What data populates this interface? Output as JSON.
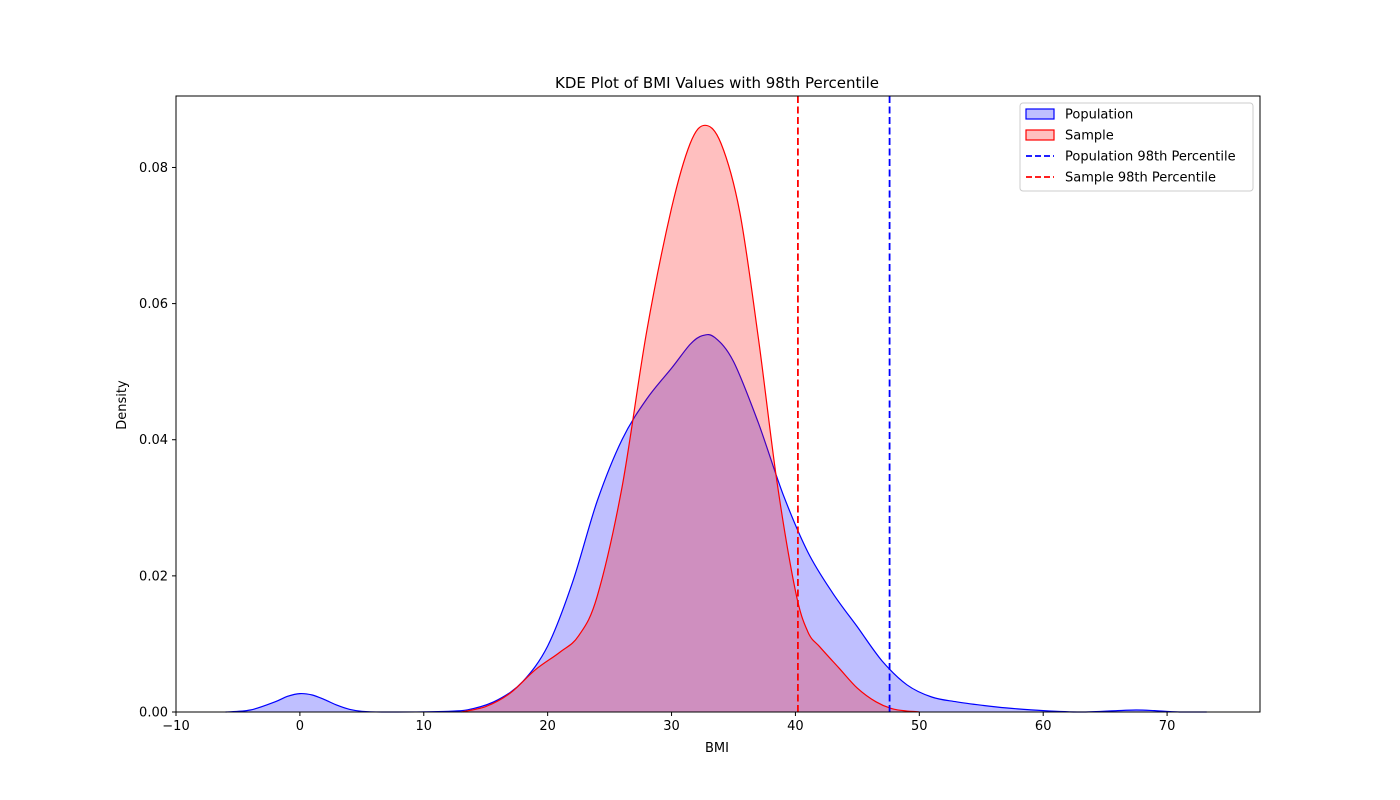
{
  "chart_data": {
    "type": "area",
    "title": "KDE Plot of BMI Values with 98th Percentile",
    "xlabel": "BMI",
    "ylabel": "Density",
    "xlim": [
      -10,
      77.5
    ],
    "ylim": [
      0,
      0.0905
    ],
    "xticks": [
      -10,
      0,
      10,
      20,
      30,
      40,
      50,
      60,
      70
    ],
    "xtick_labels": [
      "−10",
      "0",
      "10",
      "20",
      "30",
      "40",
      "50",
      "60",
      "70"
    ],
    "yticks": [
      0,
      0.02,
      0.04,
      0.06,
      0.08
    ],
    "ytick_labels": [
      "0.00",
      "0.02",
      "0.04",
      "0.06",
      "0.08"
    ],
    "grid": false,
    "legend_position": "top-right",
    "series": [
      {
        "name": "Population",
        "kind": "kde-fill",
        "line_color": "#0000ff",
        "fill_color": "#0000ff",
        "fill_opacity": 0.25,
        "points": [
          [
            -6.0,
            0.0
          ],
          [
            -4.0,
            0.0003
          ],
          [
            -2.0,
            0.0015
          ],
          [
            -1.0,
            0.0023
          ],
          [
            0.0,
            0.0027
          ],
          [
            1.0,
            0.0025
          ],
          [
            2.0,
            0.0018
          ],
          [
            3.0,
            0.001
          ],
          [
            4.0,
            0.0004
          ],
          [
            5.0,
            0.0001
          ],
          [
            7.0,
            0.0
          ],
          [
            12.0,
            0.0001
          ],
          [
            14.0,
            0.0005
          ],
          [
            16.0,
            0.0018
          ],
          [
            18.0,
            0.0045
          ],
          [
            20.0,
            0.0097
          ],
          [
            22.0,
            0.019
          ],
          [
            24.0,
            0.031
          ],
          [
            26.0,
            0.04
          ],
          [
            28.0,
            0.046
          ],
          [
            30.0,
            0.0505
          ],
          [
            31.5,
            0.054
          ],
          [
            32.5,
            0.0553
          ],
          [
            33.5,
            0.055
          ],
          [
            35.0,
            0.0515
          ],
          [
            37.0,
            0.0425
          ],
          [
            39.0,
            0.032
          ],
          [
            41.0,
            0.0235
          ],
          [
            43.0,
            0.0175
          ],
          [
            45.0,
            0.0125
          ],
          [
            47.0,
            0.0075
          ],
          [
            49.0,
            0.004
          ],
          [
            51.0,
            0.0022
          ],
          [
            53.0,
            0.0015
          ],
          [
            55.0,
            0.001
          ],
          [
            57.0,
            0.0006
          ],
          [
            60.0,
            0.0002
          ],
          [
            63.0,
            0.0
          ],
          [
            66.0,
            0.0002
          ],
          [
            67.5,
            0.0003
          ],
          [
            69.0,
            0.0002
          ],
          [
            71.0,
            0.0
          ],
          [
            73.2,
            0.0
          ]
        ]
      },
      {
        "name": "Sample",
        "kind": "kde-fill",
        "line_color": "#ff0000",
        "fill_color": "#ff0000",
        "fill_opacity": 0.25,
        "points": [
          [
            13.0,
            0.0
          ],
          [
            15.0,
            0.0008
          ],
          [
            17.0,
            0.0028
          ],
          [
            19.0,
            0.0062
          ],
          [
            21.0,
            0.0088
          ],
          [
            22.5,
            0.0112
          ],
          [
            24.0,
            0.017
          ],
          [
            26.0,
            0.033
          ],
          [
            28.0,
            0.056
          ],
          [
            30.0,
            0.074
          ],
          [
            31.5,
            0.0835
          ],
          [
            32.7,
            0.0862
          ],
          [
            34.0,
            0.0835
          ],
          [
            35.5,
            0.0735
          ],
          [
            37.0,
            0.055
          ],
          [
            38.5,
            0.034
          ],
          [
            40.0,
            0.0178
          ],
          [
            41.0,
            0.0118
          ],
          [
            42.0,
            0.0095
          ],
          [
            43.5,
            0.0065
          ],
          [
            45.0,
            0.0035
          ],
          [
            46.5,
            0.0015
          ],
          [
            48.0,
            0.0004
          ],
          [
            50.0,
            0.0
          ]
        ]
      }
    ],
    "reference_lines": [
      {
        "name": "Population 98th Percentile",
        "orientation": "vertical",
        "x": 47.6,
        "color": "#0000ff",
        "style": "dashed"
      },
      {
        "name": "Sample 98th Percentile",
        "orientation": "vertical",
        "x": 40.2,
        "color": "#ff0000",
        "style": "dashed"
      }
    ],
    "legend": [
      {
        "label": "Population",
        "marker": "patch",
        "color": "#0000ff"
      },
      {
        "label": "Sample",
        "marker": "patch",
        "color": "#ff0000"
      },
      {
        "label": "Population 98th Percentile",
        "marker": "dashed-line",
        "color": "#0000ff"
      },
      {
        "label": "Sample 98th Percentile",
        "marker": "dashed-line",
        "color": "#ff0000"
      }
    ]
  }
}
